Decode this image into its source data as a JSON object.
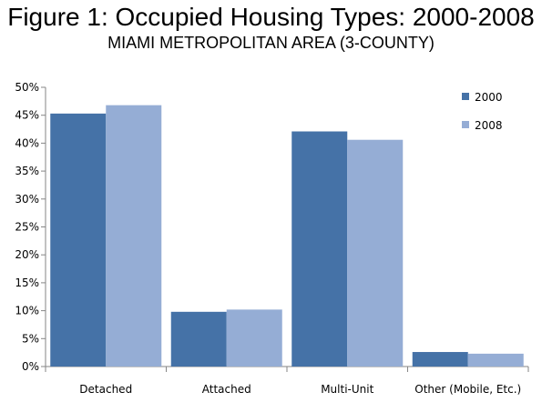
{
  "header": {
    "title": "Figure 1: Occupied Housing Types: 2000-2008",
    "subtitle": "MIAMI METROPOLITAN AREA (3-COUNTY)"
  },
  "chart_data": {
    "type": "bar",
    "title": "Figure 1: Occupied Housing Types: 2000-2008",
    "subtitle": "MIAMI METROPOLITAN AREA (3-COUNTY)",
    "categories": [
      "Detached",
      "Attached",
      "Multi-Unit",
      "Other (Mobile, Etc.)"
    ],
    "series": [
      {
        "name": "2000",
        "color": "#4572A7",
        "values": [
          45.3,
          9.8,
          42.1,
          2.6
        ]
      },
      {
        "name": "2008",
        "color": "#95ADD5",
        "values": [
          46.8,
          10.2,
          40.6,
          2.3
        ]
      }
    ],
    "ylim": [
      0,
      50
    ],
    "yticks": [
      "0%",
      "5%",
      "10%",
      "15%",
      "20%",
      "25%",
      "30%",
      "35%",
      "40%",
      "45%",
      "50%"
    ],
    "ytick_values": [
      0,
      5,
      10,
      15,
      20,
      25,
      30,
      35,
      40,
      45,
      50
    ],
    "grid": false,
    "legend": "top-right",
    "xlabel": "",
    "ylabel": ""
  }
}
